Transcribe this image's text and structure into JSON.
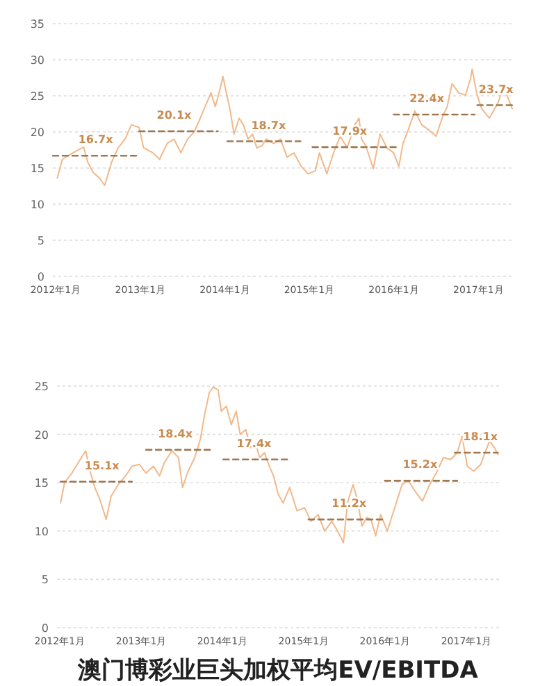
{
  "chart_data": [
    {
      "type": "line",
      "xlim": [
        "2011-12-20",
        "2017-06-05"
      ],
      "ylim": [
        0,
        35
      ],
      "yticks": [
        0,
        5,
        10,
        15,
        20,
        25,
        30,
        35
      ],
      "xticks": [
        {
          "value": "2012-01",
          "label": "2012年1月"
        },
        {
          "value": "2013-01",
          "label": "2013年1月"
        },
        {
          "value": "2014-01",
          "label": "2014年1月"
        },
        {
          "value": "2015-01",
          "label": "2015年1月"
        },
        {
          "value": "2016-01",
          "label": "2016年1月"
        },
        {
          "value": "2017-01",
          "label": "2017年1月"
        }
      ],
      "grid": "y",
      "series": [
        {
          "color": "#f2b88a",
          "x": [
            "2012-01-08",
            "2012-01-30",
            "2012-02-28",
            "2012-04-01",
            "2012-05-01",
            "2012-05-19",
            "2012-06-11",
            "2012-07-09",
            "2012-07-31",
            "2012-08-30",
            "2012-09-27",
            "2012-10-27",
            "2012-11-24",
            "2012-12-27",
            "2013-01-15",
            "2013-02-25",
            "2013-03-25",
            "2013-04-27",
            "2013-05-27",
            "2013-06-25",
            "2013-07-24",
            "2013-08-22",
            "2013-09-13",
            "2013-10-12",
            "2013-11-03",
            "2013-11-21",
            "2013-12-13",
            "2013-12-24",
            "2014-01-05",
            "2014-01-23",
            "2014-02-10",
            "2014-03-04",
            "2014-03-22",
            "2014-04-12",
            "2014-05-01",
            "2014-05-19",
            "2014-06-11",
            "2014-06-29",
            "2014-07-31",
            "2014-08-30",
            "2014-09-27",
            "2014-10-27",
            "2014-11-28",
            "2014-12-27",
            "2015-01-27",
            "2015-02-14",
            "2015-03-18",
            "2015-04-16",
            "2015-05-15",
            "2015-06-14",
            "2015-07-17",
            "2015-08-04",
            "2015-08-15",
            "2015-09-02",
            "2015-10-05",
            "2015-11-03",
            "2015-12-02",
            "2016-01-01",
            "2016-01-23",
            "2016-02-10",
            "2016-03-04",
            "2016-04-01",
            "2016-05-01",
            "2016-05-30",
            "2016-07-02",
            "2016-07-31",
            "2016-08-19",
            "2016-09-09",
            "2016-10-08",
            "2016-11-06",
            "2016-11-28",
            "2016-12-05",
            "2016-12-24",
            "2017-01-15",
            "2017-02-17",
            "2017-03-07",
            "2017-03-29",
            "2017-04-16",
            "2017-05-08",
            "2017-05-27"
          ],
          "values": [
            13.6,
            16.2,
            16.8,
            17.4,
            17.9,
            15.8,
            14.4,
            13.6,
            12.6,
            15.8,
            17.8,
            19.0,
            21.0,
            20.6,
            17.8,
            17.1,
            16.2,
            18.4,
            19.0,
            17.1,
            19.0,
            20.0,
            21.6,
            23.8,
            25.4,
            23.5,
            26.1,
            27.7,
            25.8,
            23.2,
            19.7,
            21.9,
            21.0,
            19.0,
            19.7,
            17.8,
            18.1,
            19.0,
            18.4,
            19.0,
            16.5,
            17.1,
            15.2,
            14.2,
            14.6,
            17.1,
            14.2,
            17.1,
            19.4,
            17.8,
            21.0,
            21.9,
            19.0,
            18.1,
            14.9,
            19.7,
            17.8,
            17.1,
            15.2,
            18.4,
            20.3,
            22.9,
            21.0,
            20.3,
            19.4,
            22.2,
            23.5,
            26.7,
            25.4,
            25.1,
            27.4,
            28.7,
            25.4,
            23.2,
            21.9,
            22.9,
            24.2,
            26.1,
            24.8,
            23.2
          ]
        },
        {
          "color": "#a07850",
          "line_style": "dashed",
          "x": [
            "2011-12-20",
            "2012-12-16"
          ],
          "values": [
            16.7,
            16.7
          ]
        },
        {
          "color": "#a07850",
          "line_style": "dashed",
          "x": [
            "2012-12-27",
            "2013-12-02"
          ],
          "values": [
            20.1,
            20.1
          ]
        },
        {
          "color": "#a07850",
          "line_style": "dashed",
          "x": [
            "2014-01-12",
            "2014-11-24"
          ],
          "values": [
            18.7,
            18.7
          ]
        },
        {
          "color": "#a07850",
          "line_style": "dashed",
          "x": [
            "2015-01-15",
            "2016-01-23"
          ],
          "values": [
            17.9,
            17.9
          ]
        },
        {
          "color": "#a07850",
          "line_style": "dashed",
          "x": [
            "2016-01-01",
            "2016-12-16"
          ],
          "values": [
            22.4,
            22.4
          ]
        },
        {
          "color": "#a07850",
          "line_style": "dashed",
          "x": [
            "2016-12-27",
            "2017-05-27"
          ],
          "values": [
            23.7,
            23.7
          ]
        }
      ],
      "annotations": [
        {
          "text": "16.7x",
          "x": "2012-06-22",
          "y": 16.7
        },
        {
          "text": "20.1x",
          "x": "2013-05-27",
          "y": 20.1
        },
        {
          "text": "18.7x",
          "x": "2014-07-09",
          "y": 18.7
        },
        {
          "text": "17.9x",
          "x": "2015-06-25",
          "y": 17.9
        },
        {
          "text": "22.4x",
          "x": "2016-05-23",
          "y": 22.4
        },
        {
          "text": "23.7x",
          "x": "2017-03-18",
          "y": 23.7
        }
      ]
    },
    {
      "type": "line",
      "title": "澳门博彩业巨头加权平均EV/EBITDA",
      "xlim": [
        "2011-12-20",
        "2017-06-03"
      ],
      "ylim": [
        0,
        25
      ],
      "yticks": [
        0,
        5,
        10,
        15,
        20,
        25
      ],
      "xticks": [
        {
          "value": "2012-01",
          "label": "2012年1月"
        },
        {
          "value": "2013-01",
          "label": "2013年1月"
        },
        {
          "value": "2014-01",
          "label": "2014年1月"
        },
        {
          "value": "2015-01",
          "label": "2015年1月"
        },
        {
          "value": "2016-01",
          "label": "2016年1月"
        },
        {
          "value": "2017-01",
          "label": "2017年1月"
        }
      ],
      "grid": "y",
      "series": [
        {
          "color": "#f2b88a",
          "x": [
            "2012-01-05",
            "2012-01-23",
            "2012-02-25",
            "2012-03-25",
            "2012-04-27",
            "2012-05-19",
            "2012-06-07",
            "2012-06-29",
            "2012-07-28",
            "2012-08-19",
            "2012-09-20",
            "2012-10-23",
            "2012-11-21",
            "2012-12-24",
            "2013-01-23",
            "2013-02-25",
            "2013-03-25",
            "2013-04-16",
            "2013-05-19",
            "2013-06-18",
            "2013-07-06",
            "2013-07-31",
            "2013-08-30",
            "2013-09-24",
            "2013-10-12",
            "2013-11-03",
            "2013-11-21",
            "2013-12-13",
            "2013-12-27",
            "2014-01-19",
            "2014-02-10",
            "2014-03-04",
            "2014-03-22",
            "2014-04-16",
            "2014-05-08",
            "2014-05-30",
            "2014-06-18",
            "2014-07-09",
            "2014-07-31",
            "2014-08-19",
            "2014-09-09",
            "2014-10-01",
            "2014-10-30",
            "2014-12-02",
            "2015-01-05",
            "2015-02-03",
            "2015-03-07",
            "2015-04-05",
            "2015-05-08",
            "2015-06-07",
            "2015-06-29",
            "2015-07-17",
            "2015-08-11",
            "2015-08-30",
            "2015-09-20",
            "2015-10-12",
            "2015-10-30",
            "2015-11-21",
            "2015-12-13",
            "2016-01-12",
            "2016-02-14",
            "2016-03-18",
            "2016-04-16",
            "2016-05-19",
            "2016-06-18",
            "2016-07-20",
            "2016-08-19",
            "2016-09-20",
            "2016-10-23",
            "2016-11-21",
            "2016-12-13",
            "2017-01-05",
            "2017-02-03",
            "2017-03-07",
            "2017-03-25",
            "2017-04-16",
            "2017-05-08",
            "2017-05-23"
          ],
          "values": [
            12.9,
            15.0,
            16.0,
            17.1,
            18.3,
            16.0,
            14.5,
            13.3,
            11.2,
            13.6,
            14.8,
            15.7,
            16.7,
            16.9,
            16.0,
            16.7,
            15.7,
            17.1,
            18.3,
            17.6,
            14.5,
            16.2,
            17.6,
            19.5,
            21.9,
            24.3,
            24.9,
            24.6,
            22.4,
            22.9,
            21.0,
            22.4,
            20.0,
            20.5,
            18.6,
            19.0,
            17.6,
            18.1,
            16.7,
            15.7,
            13.8,
            12.9,
            14.5,
            12.1,
            12.4,
            11.0,
            11.7,
            10.0,
            11.0,
            9.8,
            8.8,
            12.9,
            14.8,
            13.3,
            10.5,
            11.4,
            11.2,
            9.5,
            11.7,
            10.0,
            12.4,
            14.8,
            15.2,
            14.0,
            13.1,
            14.8,
            16.0,
            17.6,
            17.4,
            18.1,
            19.8,
            16.7,
            16.2,
            16.9,
            18.1,
            19.3,
            18.6,
            17.9
          ]
        },
        {
          "color": "#a07850",
          "line_style": "dashed",
          "x": [
            "2012-01-05",
            "2012-11-21"
          ],
          "values": [
            15.1,
            15.1
          ]
        },
        {
          "color": "#a07850",
          "line_style": "dashed",
          "x": [
            "2013-01-23",
            "2013-11-10"
          ],
          "values": [
            18.4,
            18.4
          ]
        },
        {
          "color": "#a07850",
          "line_style": "dashed",
          "x": [
            "2014-01-05",
            "2014-11-06"
          ],
          "values": [
            17.4,
            17.4
          ]
        },
        {
          "color": "#a07850",
          "line_style": "dashed",
          "x": [
            "2015-01-23",
            "2016-01-05"
          ],
          "values": [
            11.2,
            11.2
          ]
        },
        {
          "color": "#a07850",
          "line_style": "dashed",
          "x": [
            "2016-01-01",
            "2016-11-21"
          ],
          "values": [
            15.2,
            15.2
          ]
        },
        {
          "color": "#a07850",
          "line_style": "dashed",
          "x": [
            "2016-11-10",
            "2017-05-23"
          ],
          "values": [
            18.1,
            18.1
          ]
        }
      ],
      "annotations": [
        {
          "text": "15.1x",
          "x": "2012-07-09",
          "y": 15.1
        },
        {
          "text": "18.4x",
          "x": "2013-06-03",
          "y": 18.4
        },
        {
          "text": "17.4x",
          "x": "2014-05-23",
          "y": 17.4
        },
        {
          "text": "11.2x",
          "x": "2015-07-24",
          "y": 11.2
        },
        {
          "text": "15.2x",
          "x": "2016-06-07",
          "y": 15.2
        },
        {
          "text": "18.1x",
          "x": "2017-03-05",
          "y": 18.1
        }
      ]
    }
  ]
}
